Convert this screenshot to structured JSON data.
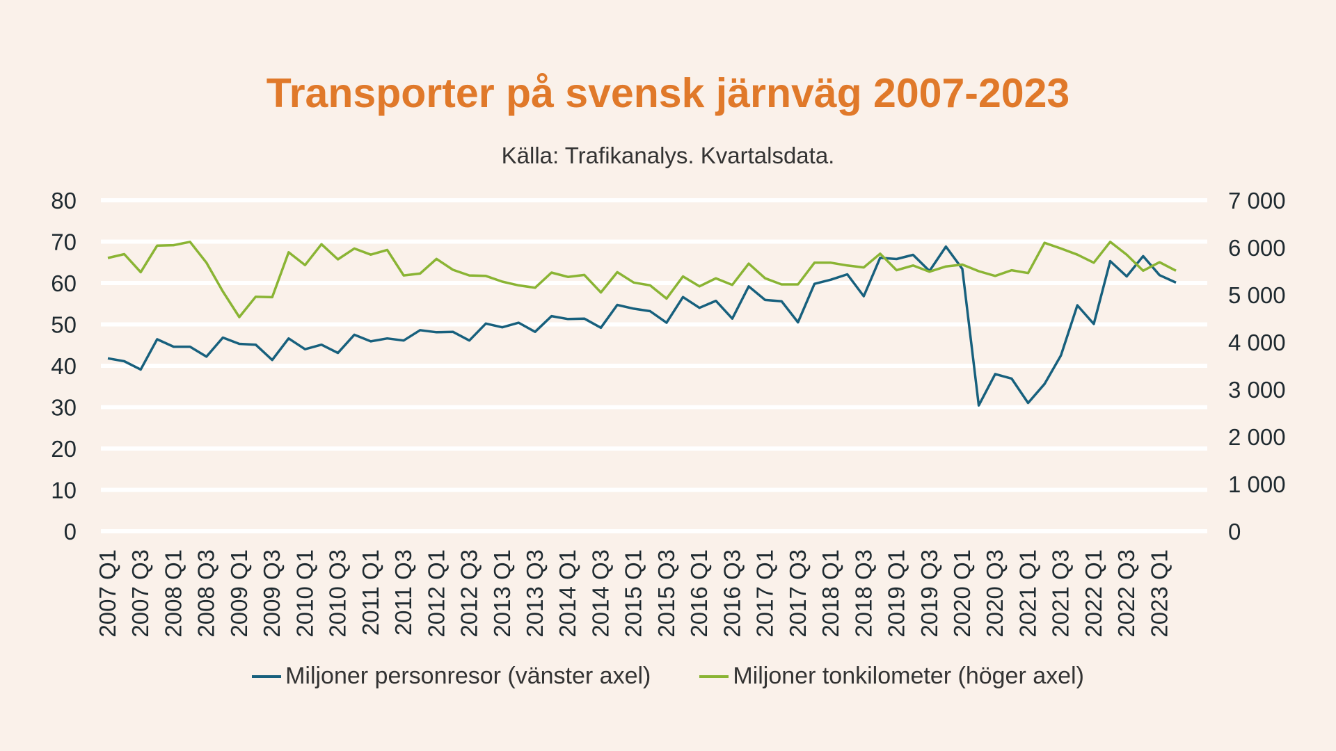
{
  "chart_data": {
    "type": "line",
    "title": "Transporter på svensk järnväg 2007-2023",
    "subtitle": "Källa: Trafikanalys. Kvartalsdata.",
    "y_left": {
      "min": 0,
      "max": 80,
      "ticks": [
        "0",
        "10",
        "20",
        "30",
        "40",
        "50",
        "60",
        "70",
        "80"
      ]
    },
    "y_right": {
      "min": 0,
      "max": 7000,
      "ticks": [
        "0",
        "1 000",
        "2 000",
        "3 000",
        "4 000",
        "5 000",
        "6 000",
        "7 000"
      ]
    },
    "grid": true,
    "legend_position": "bottom",
    "x_tick_labels": [
      "2007 Q1",
      "2007 Q3",
      "2008 Q1",
      "2008 Q3",
      "2009 Q1",
      "2009 Q3",
      "2010 Q1",
      "2010 Q3",
      "2011 Q1",
      "2011 Q3",
      "2012 Q1",
      "2012 Q3",
      "2013 Q1",
      "2013 Q3",
      "2014 Q1",
      "2014 Q3",
      "2015 Q1",
      "2015 Q3",
      "2016 Q1",
      "2016 Q3",
      "2017 Q1",
      "2017 Q3",
      "2018 Q1",
      "2018 Q3",
      "2019 Q1",
      "2019 Q3",
      "2020 Q1",
      "2020 Q3",
      "2021 Q1",
      "2021 Q3",
      "2022 Q1",
      "2022 Q3",
      "2023 Q1"
    ],
    "x": [
      "2007 Q1",
      "2007 Q2",
      "2007 Q3",
      "2007 Q4",
      "2008 Q1",
      "2008 Q2",
      "2008 Q3",
      "2008 Q4",
      "2009 Q1",
      "2009 Q2",
      "2009 Q3",
      "2009 Q4",
      "2010 Q1",
      "2010 Q2",
      "2010 Q3",
      "2010 Q4",
      "2011 Q1",
      "2011 Q2",
      "2011 Q3",
      "2011 Q4",
      "2012 Q1",
      "2012 Q2",
      "2012 Q3",
      "2012 Q4",
      "2013 Q1",
      "2013 Q2",
      "2013 Q3",
      "2013 Q4",
      "2014 Q1",
      "2014 Q2",
      "2014 Q3",
      "2014 Q4",
      "2015 Q1",
      "2015 Q2",
      "2015 Q3",
      "2015 Q4",
      "2016 Q1",
      "2016 Q2",
      "2016 Q3",
      "2016 Q4",
      "2017 Q1",
      "2017 Q2",
      "2017 Q3",
      "2017 Q4",
      "2018 Q1",
      "2018 Q2",
      "2018 Q3",
      "2018 Q4",
      "2019 Q1",
      "2019 Q2",
      "2019 Q3",
      "2019 Q4",
      "2020 Q1",
      "2020 Q2",
      "2020 Q3",
      "2020 Q4",
      "2021 Q1",
      "2021 Q2",
      "2021 Q3",
      "2021 Q4",
      "2022 Q1",
      "2022 Q2",
      "2022 Q3",
      "2022 Q4",
      "2023 Q1",
      "2023 Q2"
    ],
    "series": [
      {
        "name": "Miljoner personresor (vänster axel)",
        "axis": "left",
        "color": "#17607d",
        "values": [
          41.8,
          41.1,
          39.1,
          46.4,
          44.6,
          44.6,
          42.2,
          46.8,
          45.3,
          45.1,
          41.4,
          46.6,
          44.0,
          45.1,
          43.1,
          47.5,
          45.9,
          46.6,
          46.1,
          48.6,
          48.1,
          48.2,
          46.1,
          50.2,
          49.3,
          50.4,
          48.2,
          52.0,
          51.3,
          51.4,
          49.2,
          54.7,
          53.8,
          53.2,
          50.4,
          56.6,
          54.0,
          55.7,
          51.4,
          59.2,
          55.9,
          55.6,
          50.5,
          59.8,
          60.8,
          62.1,
          56.8,
          66.1,
          65.8,
          66.8,
          62.9,
          68.8,
          63.4,
          30.4,
          38.0,
          36.9,
          31.0,
          35.6,
          42.5,
          54.6,
          50.1,
          65.3,
          61.6,
          66.5,
          61.9,
          60.1
        ]
      },
      {
        "name": "Miljoner tonkilometer (höger axel)",
        "axis": "right",
        "color": "#8ab434",
        "values": [
          5780,
          5860,
          5480,
          6040,
          6050,
          6120,
          5680,
          5070,
          4530,
          4960,
          4950,
          5900,
          5630,
          6070,
          5750,
          5980,
          5850,
          5950,
          5410,
          5450,
          5760,
          5530,
          5410,
          5400,
          5280,
          5200,
          5150,
          5470,
          5380,
          5420,
          5050,
          5480,
          5260,
          5200,
          4920,
          5390,
          5180,
          5350,
          5210,
          5660,
          5350,
          5220,
          5220,
          5680,
          5680,
          5620,
          5580,
          5870,
          5520,
          5620,
          5490,
          5600,
          5640,
          5500,
          5400,
          5520,
          5460,
          6100,
          5980,
          5850,
          5680,
          6120,
          5850,
          5510,
          5690,
          5510
        ]
      }
    ]
  }
}
